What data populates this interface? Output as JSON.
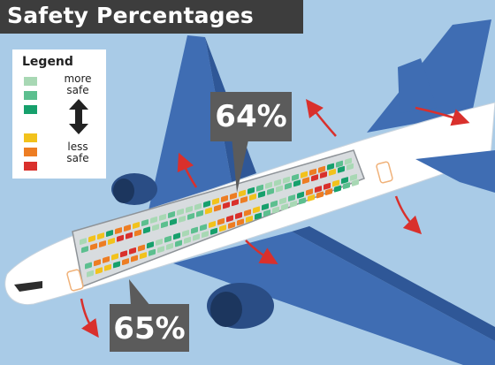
{
  "title": "Safety Percentages",
  "legend": {
    "title": "Legend",
    "top_label_1": "more",
    "top_label_2": "safe",
    "bottom_label_1": "less",
    "bottom_label_2": "safe",
    "levels": [
      {
        "rank": 1,
        "color": "#a8d8b4"
      },
      {
        "rank": 2,
        "color": "#5cbf8f"
      },
      {
        "rank": 3,
        "color": "#16a06c"
      },
      {
        "rank": 4,
        "color": "#f2c21c"
      },
      {
        "rank": 5,
        "color": "#ed7d23"
      },
      {
        "rank": 6,
        "color": "#d9302c"
      }
    ]
  },
  "callouts": {
    "rear_cabin": "64%",
    "front_cabin": "65%"
  },
  "colors": {
    "sky": "#a9cbe7",
    "wing_blue": "#3f6db3",
    "fuselage": "#ffffff",
    "callout_bg": "#5b5b5b",
    "exit_arrow": "#d9302c"
  }
}
